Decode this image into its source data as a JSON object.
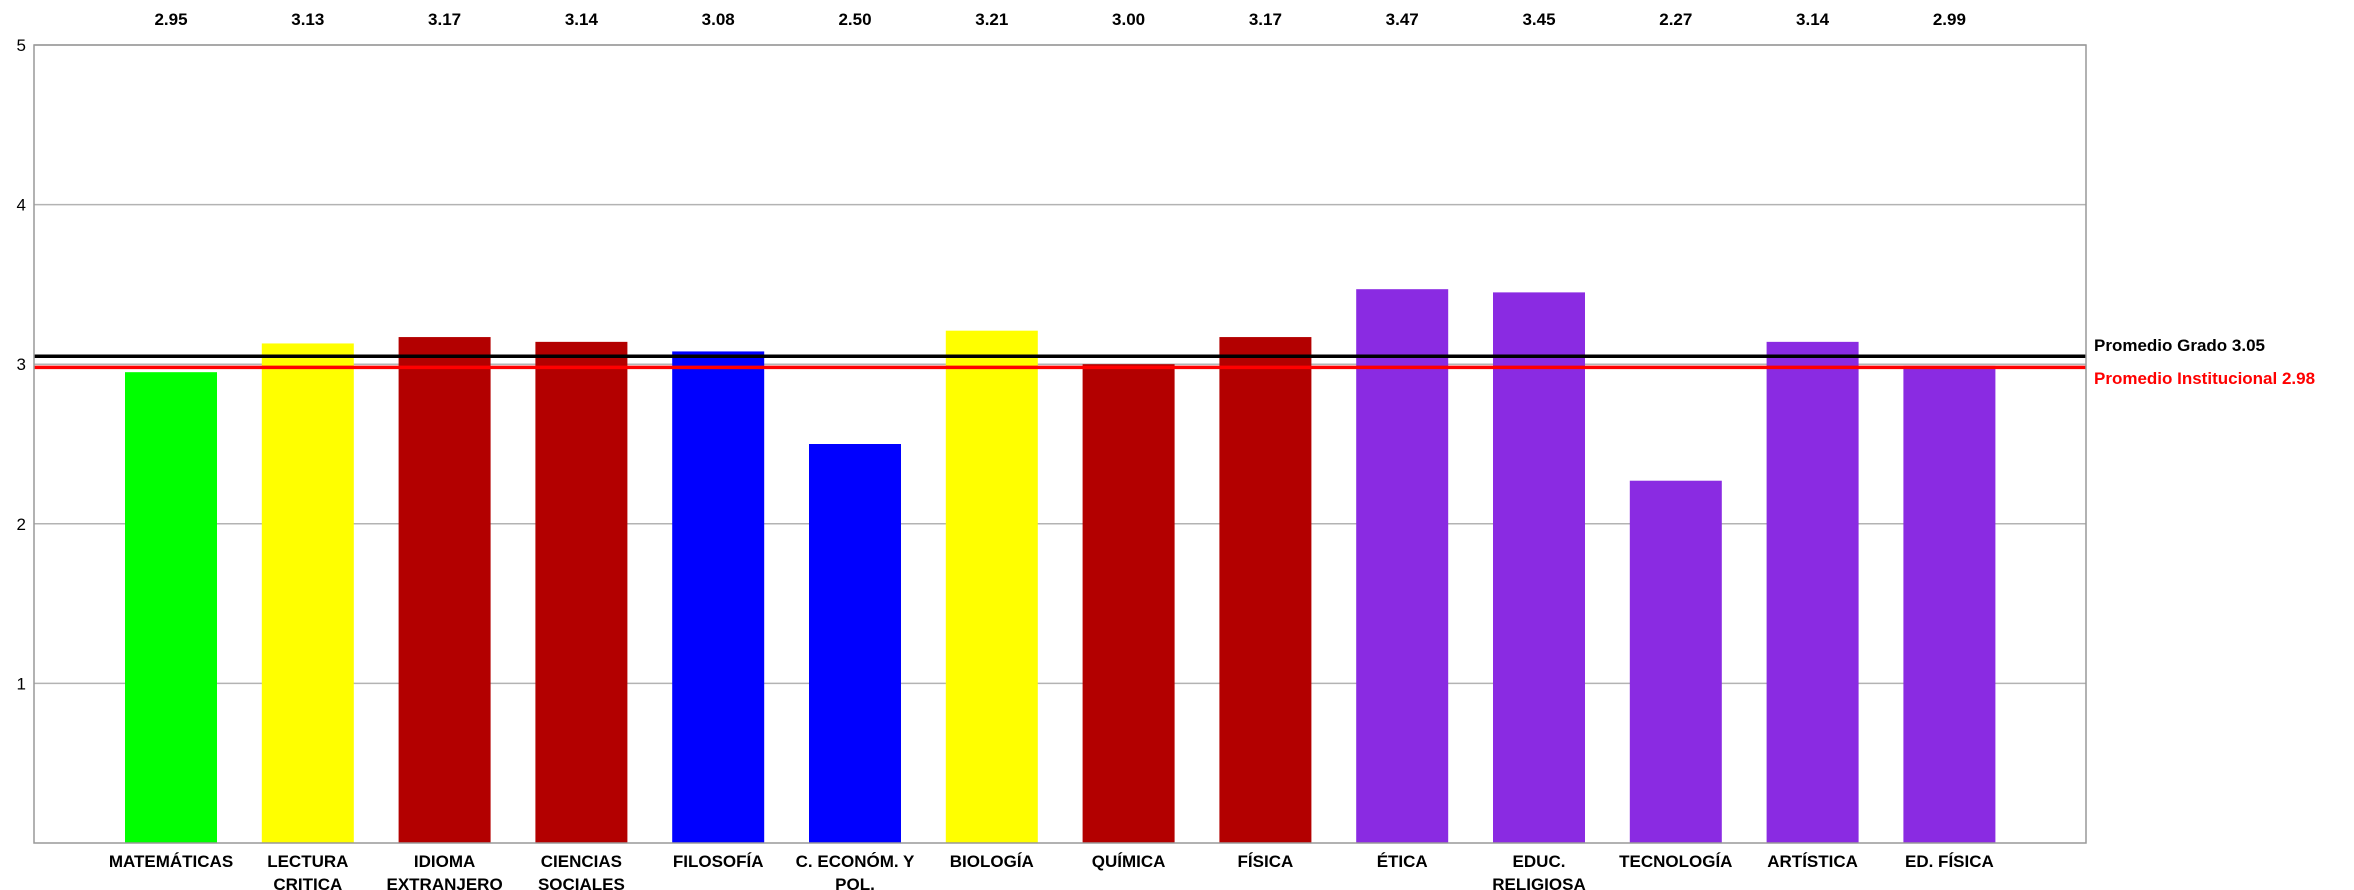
{
  "chart_data": {
    "type": "bar",
    "title": "",
    "xlabel": "",
    "ylabel": "",
    "ylim": [
      0,
      5
    ],
    "yticks": [
      1,
      2,
      3,
      4,
      5
    ],
    "grid": true,
    "categories": [
      [
        "MATEMÁTICAS"
      ],
      [
        "LECTURA",
        "CRITICA"
      ],
      [
        "IDIOMA",
        "EXTRANJERO"
      ],
      [
        "CIENCIAS",
        "SOCIALES"
      ],
      [
        "FILOSOFÍA"
      ],
      [
        "C. ECONÓM. Y",
        "POL."
      ],
      [
        "BIOLOGÍA"
      ],
      [
        "QUÍMICA"
      ],
      [
        "FÍSICA"
      ],
      [
        "ÉTICA"
      ],
      [
        "EDUC.",
        "RELIGIOSA"
      ],
      [
        "TECNOLOGÍA"
      ],
      [
        "ARTÍSTICA"
      ],
      [
        "ED. FÍSICA"
      ]
    ],
    "values": [
      2.95,
      3.13,
      3.17,
      3.14,
      3.08,
      2.5,
      3.21,
      3.0,
      3.17,
      3.47,
      3.45,
      2.27,
      3.14,
      2.99
    ],
    "value_labels": [
      "2.95",
      "3.13",
      "3.17",
      "3.14",
      "3.08",
      "2.50",
      "3.21",
      "3.00",
      "3.17",
      "3.47",
      "3.45",
      "2.27",
      "3.14",
      "2.99"
    ],
    "bar_colors": [
      "#00ff00",
      "#ffff00",
      "#b30000",
      "#b30000",
      "#0000ff",
      "#0000ff",
      "#ffff00",
      "#b30000",
      "#b30000",
      "#8a2be2",
      "#8a2be2",
      "#8a2be2",
      "#8a2be2",
      "#8a2be2"
    ],
    "reference_lines": [
      {
        "label": "Promedio Grado 3.05",
        "value": 3.05,
        "color": "#000000"
      },
      {
        "label": "Promedio Institucional 2.98",
        "value": 2.98,
        "color": "#ff0000"
      }
    ],
    "grid_color": "#b3b3b3",
    "axis_color": "#999999"
  }
}
